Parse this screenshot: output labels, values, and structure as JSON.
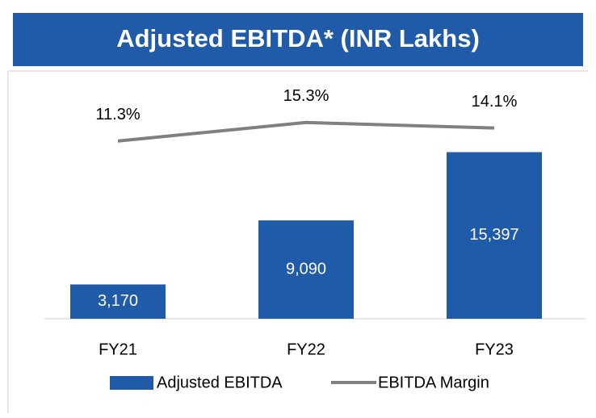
{
  "chart_data": {
    "type": "bar_line",
    "title": "Adjusted EBITDA* (INR Lakhs)",
    "categories": [
      "FY21",
      "FY22",
      "FY23"
    ],
    "series": [
      {
        "name": "Adjusted EBITDA",
        "type": "bar",
        "color": "#1f5ba8",
        "values": [
          3170,
          9090,
          15397
        ],
        "value_labels": [
          "3,170",
          "9,090",
          "15,397"
        ]
      },
      {
        "name": "EBITDA Margin",
        "type": "line",
        "axis": "y2",
        "color": "#808080",
        "values": [
          11.3,
          15.3,
          14.1
        ],
        "value_labels": [
          "11.3%",
          "15.3%",
          "14.1%"
        ]
      }
    ],
    "ylim": [
      0,
      22000
    ],
    "y2lim": [
      -27,
      24.3
    ],
    "legend": "bottom"
  }
}
